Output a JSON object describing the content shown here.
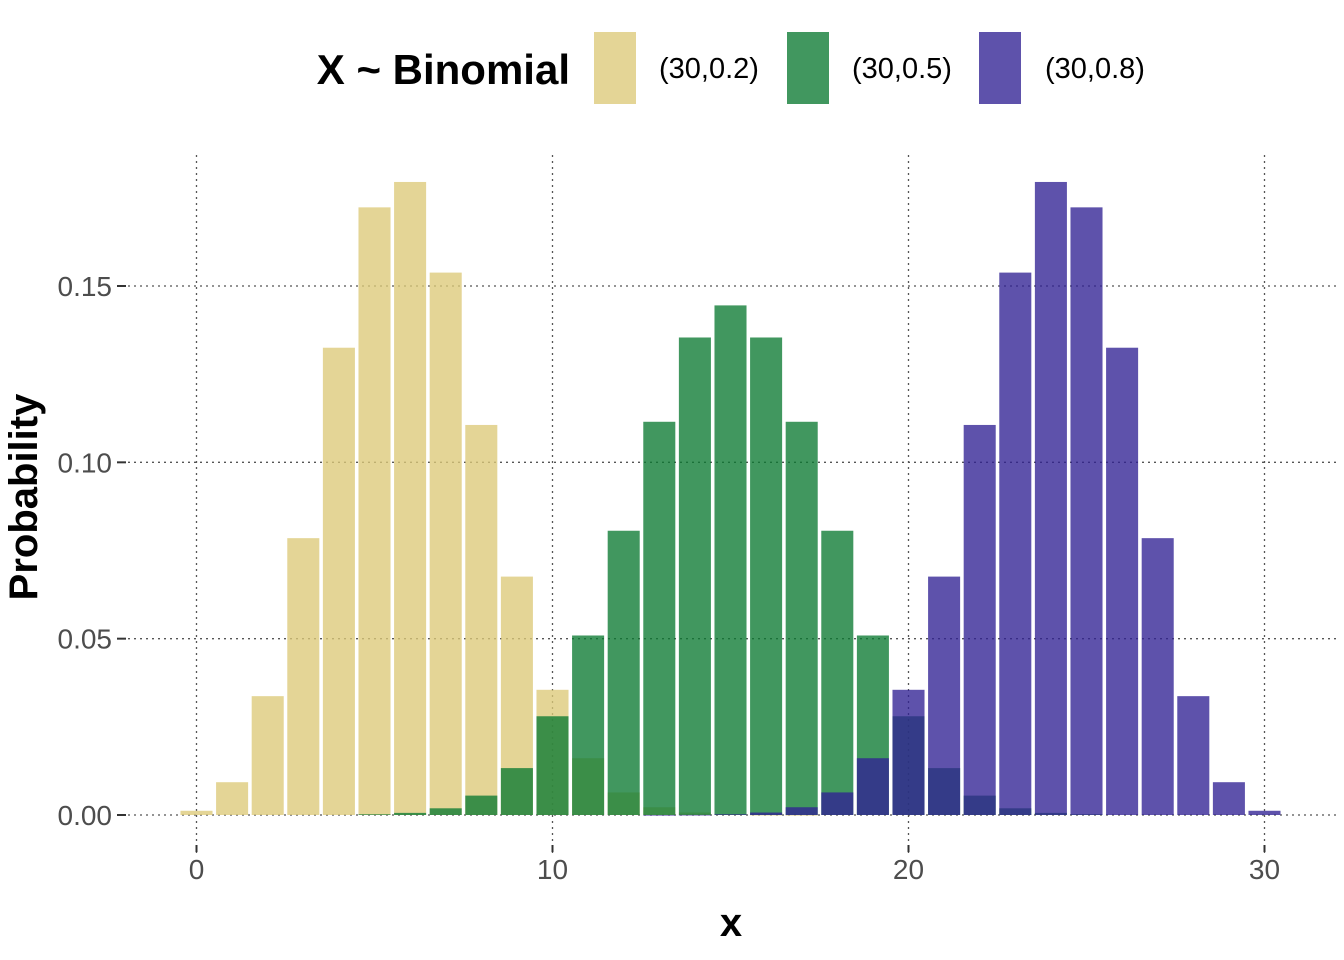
{
  "chart_data": {
    "type": "bar",
    "overlay": true,
    "xlabel": "x",
    "ylabel": "Probability",
    "xlim": [
      -0.5,
      30.5
    ],
    "ylim": [
      0,
      0.18
    ],
    "x_ticks": [
      0,
      10,
      20,
      30
    ],
    "x_tick_labels": [
      "0",
      "10",
      "20",
      "30"
    ],
    "y_ticks": [
      0,
      0.05,
      0.1,
      0.15
    ],
    "y_tick_labels": [
      "0.00",
      "0.05",
      "0.10",
      "0.15"
    ],
    "grid": true,
    "grid_style": "dotted",
    "legend": {
      "title": "X ~ Binomial",
      "position": "top"
    },
    "x": [
      0,
      1,
      2,
      3,
      4,
      5,
      6,
      7,
      8,
      9,
      10,
      11,
      12,
      13,
      14,
      15,
      16,
      17,
      18,
      19,
      20,
      21,
      22,
      23,
      24,
      25,
      26,
      27,
      28,
      29,
      30
    ],
    "series": [
      {
        "name": "(30,0.2)",
        "color": "#DCC979",
        "values": [
          0.0012,
          0.0093,
          0.0337,
          0.0785,
          0.1325,
          0.1723,
          0.1795,
          0.1538,
          0.1106,
          0.0676,
          0.0355,
          0.0161,
          0.0064,
          0.0022,
          0.0007,
          0.0002,
          4e-05,
          1e-05,
          0,
          0,
          0,
          0,
          0,
          0,
          0,
          0,
          0,
          0,
          0,
          0,
          0
        ]
      },
      {
        "name": "(30,0.5)",
        "color": "#0B7A32",
        "values": [
          0,
          0,
          0,
          0,
          0,
          0.0002,
          0.0006,
          0.0019,
          0.0055,
          0.0133,
          0.028,
          0.0509,
          0.0806,
          0.1115,
          0.1354,
          0.1445,
          0.1354,
          0.1115,
          0.0806,
          0.0509,
          0.028,
          0.0133,
          0.0055,
          0.0019,
          0.0006,
          0.0002,
          0,
          0,
          0,
          0,
          0
        ]
      },
      {
        "name": "(30,0.8)",
        "color": "#312193",
        "values": [
          0,
          0,
          0,
          0,
          0,
          0,
          0,
          0,
          0,
          0,
          0,
          0,
          0,
          1e-05,
          4e-05,
          0.0002,
          0.0007,
          0.0022,
          0.0064,
          0.0161,
          0.0355,
          0.0676,
          0.1106,
          0.1538,
          0.1795,
          0.1723,
          0.1325,
          0.0785,
          0.0337,
          0.0093,
          0.0012
        ]
      }
    ]
  }
}
